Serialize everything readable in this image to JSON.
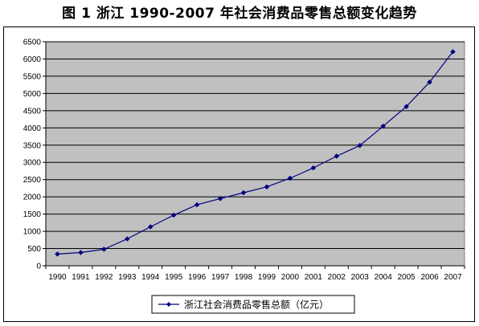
{
  "figure_title": "图 1    浙江 1990-2007 年社会消费品零售总额变化趋势",
  "chart_data": {
    "type": "line",
    "title": "图 1    浙江 1990-2007 年社会消费品零售总额变化趋势",
    "xlabel": "",
    "ylabel": "",
    "categories": [
      "1990",
      "1991",
      "1992",
      "1993",
      "1994",
      "1995",
      "1996",
      "1997",
      "1998",
      "1999",
      "2000",
      "2001",
      "2002",
      "2003",
      "2004",
      "2005",
      "2006",
      "2007"
    ],
    "series": [
      {
        "name": "浙江社会消费品零售总额（亿元）",
        "values": [
          340,
          385,
          480,
          780,
          1130,
          1470,
          1770,
          1950,
          2120,
          2290,
          2540,
          2840,
          3180,
          3490,
          4050,
          4620,
          5330,
          6210
        ],
        "color": "#000080"
      }
    ],
    "ylim": [
      0,
      6500
    ],
    "yticks": [
      0,
      500,
      1000,
      1500,
      2000,
      2500,
      3000,
      3500,
      4000,
      4500,
      5000,
      5500,
      6000,
      6500
    ],
    "grid": true,
    "plot_background": "#c0c0c0",
    "legend_position": "bottom"
  }
}
